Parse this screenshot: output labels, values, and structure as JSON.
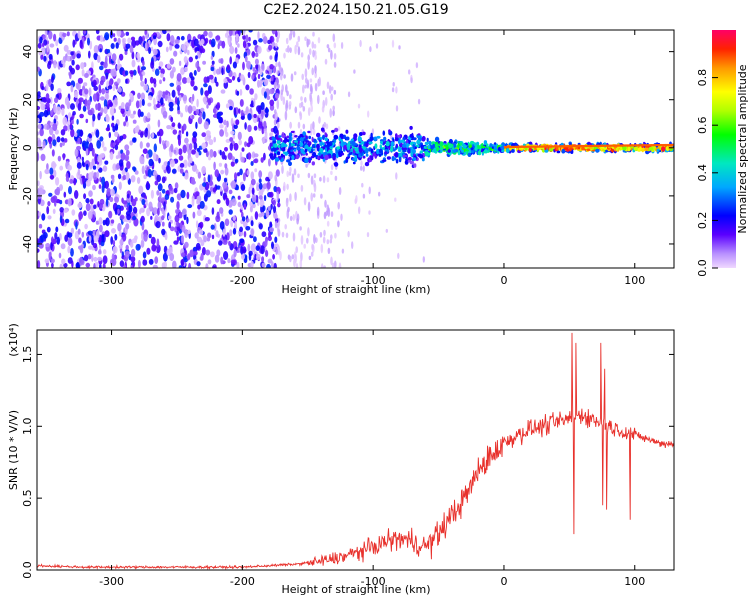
{
  "title": "C2E2.2024.150.21.05.G19",
  "chart_data": [
    {
      "type": "heatmap",
      "xlabel": "Height of straight line (km)",
      "ylabel": "Frequency (Hz)",
      "xlim": [
        -357,
        130
      ],
      "ylim": [
        -50,
        49
      ],
      "xticks": [
        -300,
        -200,
        -100,
        0,
        100
      ],
      "xtick_labels": [
        "-300",
        "-200",
        "-100",
        "0",
        "100"
      ],
      "yticks": [
        -40,
        -20,
        0,
        20,
        40
      ],
      "ytick_labels": [
        "-40",
        "-20",
        "0",
        "20",
        "40"
      ],
      "colorbar": {
        "label": "Normalized spectral amplitude",
        "range": [
          0,
          1
        ],
        "ticks": [
          0,
          0.2,
          0.4,
          0.6,
          0.8
        ],
        "tick_labels": [
          "0.0",
          "0.2",
          "0.4",
          "0.6",
          "0.8"
        ],
        "colormap": "rainbow"
      },
      "regions": [
        {
          "x": [
            -357,
            -175
          ],
          "f_range": [
            -50,
            49
          ],
          "amplitude": 0.1
        },
        {
          "x": [
            -175,
            -130
          ],
          "f_range": [
            -50,
            49
          ],
          "amplitude": 0.03
        },
        {
          "x": [
            -175,
            -60
          ],
          "f_range": [
            -10,
            10
          ],
          "amplitude": 0.25
        },
        {
          "x": [
            -60,
            0
          ],
          "f_range": [
            -4,
            4
          ],
          "amplitude": 0.5
        },
        {
          "x": [
            0,
            130
          ],
          "f_range": [
            -2,
            2
          ],
          "amplitude": 0.75
        }
      ]
    },
    {
      "type": "line",
      "xlabel": "Height of straight line (km)",
      "ylabel": "SNR (10 * V/V)",
      "y_multiplier": "(x10⁴)",
      "xlim": [
        -357,
        130
      ],
      "ylim": [
        0,
        1.67
      ],
      "xticks": [
        -300,
        -200,
        -100,
        0,
        100
      ],
      "xtick_labels": [
        "-300",
        "-200",
        "-100",
        "0",
        "100"
      ],
      "yticks": [
        0,
        0.5,
        1.0,
        1.5
      ],
      "ytick_labels": [
        "0.0",
        "0.5",
        "1.0",
        "1.5"
      ],
      "series": [
        {
          "color": "#e8312c",
          "x": [
            -357,
            -320,
            -280,
            -240,
            -200,
            -180,
            -160,
            -140,
            -120,
            -100,
            -90,
            -80,
            -70,
            -60,
            -50,
            -40,
            -30,
            -20,
            -10,
            0,
            10,
            20,
            30,
            40,
            50,
            60,
            70,
            80,
            90,
            100,
            110,
            120,
            130
          ],
          "values": [
            0.03,
            0.02,
            0.02,
            0.02,
            0.02,
            0.03,
            0.04,
            0.06,
            0.1,
            0.16,
            0.2,
            0.22,
            0.2,
            0.16,
            0.25,
            0.38,
            0.5,
            0.68,
            0.8,
            0.88,
            0.94,
            0.98,
            1.0,
            1.03,
            1.05,
            1.08,
            1.04,
            1.0,
            0.97,
            0.94,
            0.91,
            0.88,
            0.88
          ]
        }
      ],
      "dips": [
        {
          "x": 52,
          "y": 0.25
        },
        {
          "x": 74,
          "y": 0.45
        },
        {
          "x": 77,
          "y": 0.42
        },
        {
          "x": 95,
          "y": 0.35
        }
      ],
      "spikes": [
        {
          "x": 52,
          "y": 1.65
        },
        {
          "x": 55,
          "y": 1.58
        },
        {
          "x": 74,
          "y": 1.58
        },
        {
          "x": 77,
          "y": 1.4
        }
      ]
    }
  ]
}
